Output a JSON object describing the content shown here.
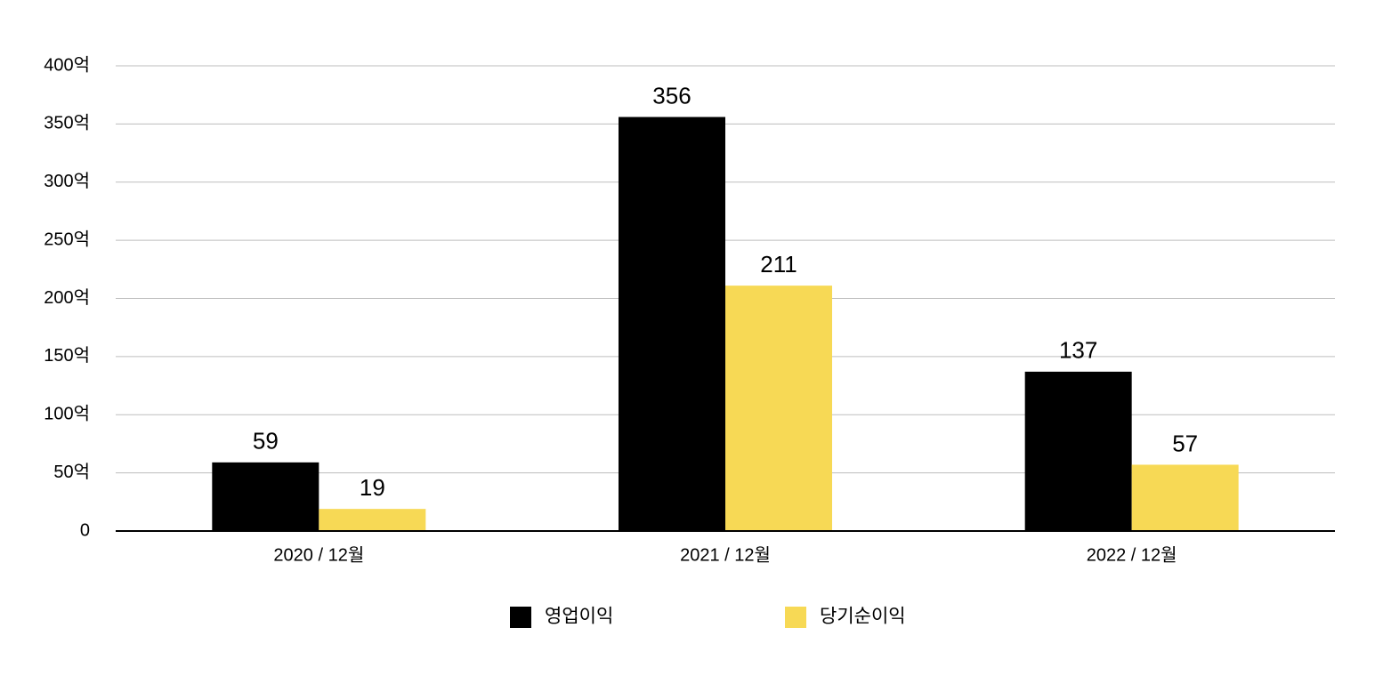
{
  "chart_data": {
    "type": "bar",
    "categories": [
      "2020 / 12월",
      "2021 / 12월",
      "2022 / 12월"
    ],
    "series": [
      {
        "name": "영업이익",
        "color": "#000000",
        "values": [
          59,
          356,
          137
        ]
      },
      {
        "name": "당기순이익",
        "color": "#f7d955",
        "values": [
          19,
          211,
          57
        ]
      }
    ],
    "ylim": [
      0,
      400
    ],
    "yticks": [
      0,
      {
        "value": 50,
        "label": "50억"
      },
      {
        "value": 100,
        "label": "100억"
      },
      {
        "value": 150,
        "label": "150억"
      },
      {
        "value": 200,
        "label": "200억"
      },
      {
        "value": 250,
        "label": "250억"
      },
      {
        "value": 300,
        "label": "300억"
      },
      {
        "value": 350,
        "label": "350억"
      },
      {
        "value": 400,
        "label": "400억"
      }
    ],
    "grid": true,
    "legend": "bottom"
  }
}
